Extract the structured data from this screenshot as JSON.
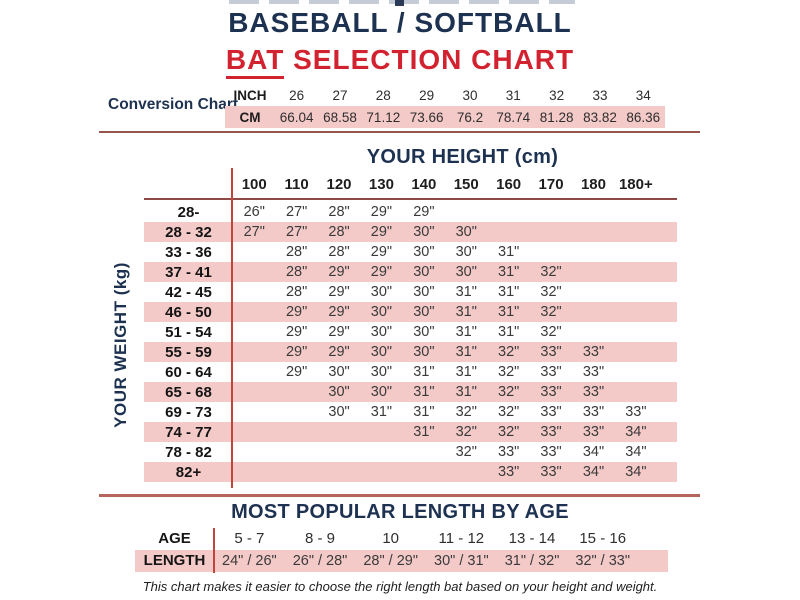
{
  "page": {
    "title_line1": "BASEBALL / SOFTBALL",
    "title_line2_underlined": "BAT",
    "title_line2_rest": " SELECTION CHART",
    "footer_note": "This chart makes it easier to choose the right length bat based on your height and weight."
  },
  "colors": {
    "navy": "#1d3150",
    "red": "#d22230",
    "pink": "#f4cac8",
    "divider_red": "#c2443a",
    "rule_dark": "#96554d",
    "rule_light": "#b5655c"
  },
  "chart_data": [
    {
      "type": "table",
      "title": "Conversion Chart",
      "row_labels": [
        "INCH",
        "CM"
      ],
      "inch_values": [
        "26",
        "27",
        "28",
        "29",
        "30",
        "31",
        "32",
        "33",
        "34"
      ],
      "cm_values": [
        "66.04",
        "68.58",
        "71.12",
        "73.66",
        "76.2",
        "78.74",
        "81.28",
        "83.82",
        "86.36"
      ]
    },
    {
      "type": "table",
      "title": "YOUR HEIGHT (cm)",
      "ylabel": "YOUR WEIGHT (kg)",
      "columns": [
        "100",
        "110",
        "120",
        "130",
        "140",
        "150",
        "160",
        "170",
        "180",
        "180+"
      ],
      "rows": [
        {
          "weight_kg": "28-",
          "highlighted": false,
          "values": [
            "26\"",
            "27\"",
            "28\"",
            "29\"",
            "29\"",
            "",
            "",
            "",
            "",
            ""
          ]
        },
        {
          "weight_kg": "28 - 32",
          "highlighted": true,
          "values": [
            "27\"",
            "27\"",
            "28\"",
            "29\"",
            "30\"",
            "30\"",
            "",
            "",
            "",
            ""
          ]
        },
        {
          "weight_kg": "33 - 36",
          "highlighted": false,
          "values": [
            "",
            "28\"",
            "28\"",
            "29\"",
            "30\"",
            "30\"",
            "31\"",
            "",
            "",
            ""
          ]
        },
        {
          "weight_kg": "37 - 41",
          "highlighted": true,
          "values": [
            "",
            "28\"",
            "29\"",
            "29\"",
            "30\"",
            "30\"",
            "31\"",
            "32\"",
            "",
            ""
          ]
        },
        {
          "weight_kg": "42 - 45",
          "highlighted": false,
          "values": [
            "",
            "28\"",
            "29\"",
            "30\"",
            "30\"",
            "31\"",
            "31\"",
            "32\"",
            "",
            ""
          ]
        },
        {
          "weight_kg": "46 - 50",
          "highlighted": true,
          "values": [
            "",
            "29\"",
            "29\"",
            "30\"",
            "30\"",
            "31\"",
            "31\"",
            "32\"",
            "",
            ""
          ]
        },
        {
          "weight_kg": "51 - 54",
          "highlighted": false,
          "values": [
            "",
            "29\"",
            "29\"",
            "30\"",
            "30\"",
            "31\"",
            "31\"",
            "32\"",
            "",
            ""
          ]
        },
        {
          "weight_kg": "55 - 59",
          "highlighted": true,
          "values": [
            "",
            "29\"",
            "29\"",
            "30\"",
            "30\"",
            "31\"",
            "32\"",
            "33\"",
            "33\"",
            ""
          ]
        },
        {
          "weight_kg": "60 - 64",
          "highlighted": false,
          "values": [
            "",
            "29\"",
            "30\"",
            "30\"",
            "31\"",
            "31\"",
            "32\"",
            "33\"",
            "33\"",
            ""
          ]
        },
        {
          "weight_kg": "65 - 68",
          "highlighted": true,
          "values": [
            "",
            "",
            "30\"",
            "30\"",
            "31\"",
            "31\"",
            "32\"",
            "33\"",
            "33\"",
            ""
          ]
        },
        {
          "weight_kg": "69 - 73",
          "highlighted": false,
          "values": [
            "",
            "",
            "30\"",
            "31\"",
            "31\"",
            "32\"",
            "32\"",
            "33\"",
            "33\"",
            "33\""
          ]
        },
        {
          "weight_kg": "74 - 77",
          "highlighted": true,
          "values": [
            "",
            "",
            "",
            "",
            "31\"",
            "32\"",
            "32\"",
            "33\"",
            "33\"",
            "34\""
          ]
        },
        {
          "weight_kg": "78 - 82",
          "highlighted": false,
          "values": [
            "",
            "",
            "",
            "",
            "",
            "32\"",
            "33\"",
            "33\"",
            "34\"",
            "34\""
          ]
        },
        {
          "weight_kg": "82+",
          "highlighted": true,
          "values": [
            "",
            "",
            "",
            "",
            "",
            "",
            "33\"",
            "33\"",
            "34\"",
            "34\""
          ]
        }
      ]
    },
    {
      "type": "table",
      "title": "MOST POPULAR LENGTH BY AGE",
      "row_labels": [
        "AGE",
        "LENGTH"
      ],
      "ages": [
        "5 - 7",
        "8 - 9",
        "10",
        "11 - 12",
        "13 - 14",
        "15 - 16"
      ],
      "lengths": [
        "24\" / 26\"",
        "26\" / 28\"",
        "28\" / 29\"",
        "30\" / 31\"",
        "31\" / 32\"",
        "32\" / 33\""
      ]
    }
  ]
}
